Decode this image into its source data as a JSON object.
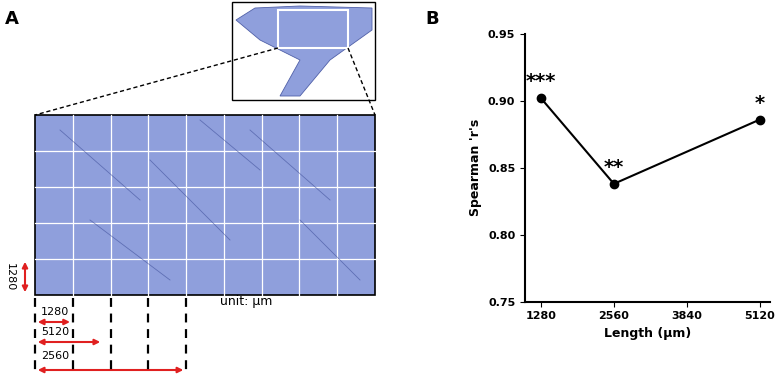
{
  "panel_a": {
    "label": "A",
    "vertical_bar": "1280",
    "arrows": [
      "1280",
      "5120",
      "2560"
    ],
    "unit": "unit: μm"
  },
  "chart_data": {
    "type": "line",
    "title": "B",
    "x": [
      1280,
      2560,
      5120
    ],
    "values": [
      0.902,
      0.838,
      0.886
    ],
    "annotations": [
      "***",
      "**",
      "*"
    ],
    "xlabel": "Length (μm)",
    "ylabel": "Spearman 'r's",
    "xlim": [
      1000,
      5300
    ],
    "xticks": [
      1280,
      2560,
      3840,
      5120
    ],
    "ylim": [
      0.75,
      0.95
    ],
    "yticks": [
      {
        "value": 0.75,
        "label": "0.75"
      },
      {
        "value": 0.8,
        "label": "0.80"
      },
      {
        "value": 0.85,
        "label": "0.85"
      },
      {
        "value": 0.9,
        "label": "0.90"
      },
      {
        "value": 0.95,
        "label": "0.95"
      }
    ],
    "color": "#000000",
    "marker": "o",
    "line_style": "solid",
    "grid": false
  }
}
